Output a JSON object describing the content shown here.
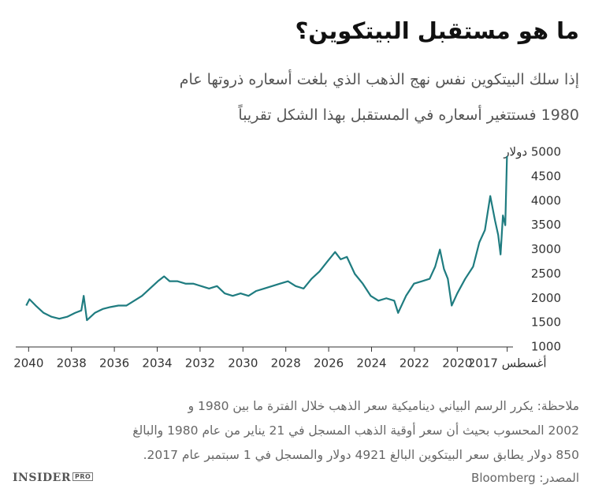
{
  "chart_data": {
    "type": "line",
    "title": "ما هو مستقبل البيتكوين؟",
    "subtitle": [
      "إذا سلك البيتكوين نفس نهج الذهب الذي بلغت أسعاره ذروتها عام",
      "1980 فستتغير أسعاره في المستقبل بهذا الشكل تقريباً"
    ],
    "note": [
      "ملاحظة: يكرر الرسم البياني ديناميكية سعر الذهب خلال الفترة ما بين 1980 و",
      "2002 المحسوب بحيث أن سعر أوقية الذهب المسجل في 21 يناير من عام 1980 والبالغ",
      "850 دولار يطابق سعر البيتكوين البالغ 4921 دولار والمسجل في 1 سبتمبر عام 2017."
    ],
    "source": "المصدر: Bloomberg",
    "logo": "INSIDER",
    "logo_badge": "PRO",
    "x": [
      2040.11,
      2039.96,
      2039.67,
      2039.3,
      2038.93,
      2038.57,
      2038.2,
      2037.83,
      2037.54,
      2037.43,
      2037.28,
      2036.91,
      2036.54,
      2036.18,
      2035.81,
      2035.44,
      2035.07,
      2034.71,
      2034.34,
      2033.97,
      2033.68,
      2033.42,
      2033.05,
      2032.68,
      2032.32,
      2031.95,
      2031.58,
      2031.21,
      2030.85,
      2030.48,
      2030.11,
      2029.74,
      2029.38,
      2029.01,
      2028.64,
      2028.27,
      2027.9,
      2027.54,
      2027.17,
      2026.8,
      2026.43,
      2026.07,
      2025.7,
      2025.44,
      2025.15,
      2024.78,
      2024.41,
      2024.04,
      2023.68,
      2023.31,
      2022.94,
      2022.76,
      2022.39,
      2022.02,
      2021.65,
      2021.29,
      2021.03,
      2020.81,
      2020.62,
      2020.44,
      2020.26,
      2020.0,
      2019.63,
      2019.26,
      2018.97,
      2018.71,
      2018.46,
      2018.24,
      2018.09,
      2017.98,
      2017.87,
      2017.76,
      2017.68
    ],
    "series": [
      {
        "color": "#1f7c80",
        "values": [
          1850,
          1980,
          1850,
          1700,
          1620,
          1580,
          1620,
          1700,
          1750,
          2050,
          1550,
          1700,
          1780,
          1820,
          1850,
          1850,
          1950,
          2050,
          2200,
          2350,
          2450,
          2350,
          2350,
          2300,
          2300,
          2250,
          2200,
          2250,
          2100,
          2050,
          2100,
          2050,
          2150,
          2200,
          2250,
          2300,
          2350,
          2250,
          2200,
          2400,
          2550,
          2750,
          2950,
          2800,
          2850,
          2500,
          2300,
          2050,
          1950,
          2000,
          1950,
          1700,
          2050,
          2300,
          2350,
          2400,
          2650,
          3000,
          2600,
          2400,
          1850,
          2100,
          2400,
          2650,
          3150,
          3400,
          4100,
          3600,
          3300,
          2900,
          3700,
          3500,
          4921
        ]
      }
    ],
    "xlim": [
      2040.6,
      2017.4
    ],
    "ylim": [
      1000,
      5000
    ],
    "xticks": [
      2040,
      2038,
      2036,
      2034,
      2032,
      2030,
      2028,
      2026,
      2024,
      2022,
      2020,
      {
        "value": 2017.67,
        "label": "أغسطس 2017"
      }
    ],
    "yticks": [
      1000,
      1500,
      2000,
      2500,
      3000,
      3500,
      4000,
      4500,
      {
        "value": 5000,
        "label": "5000 دولار"
      }
    ]
  }
}
